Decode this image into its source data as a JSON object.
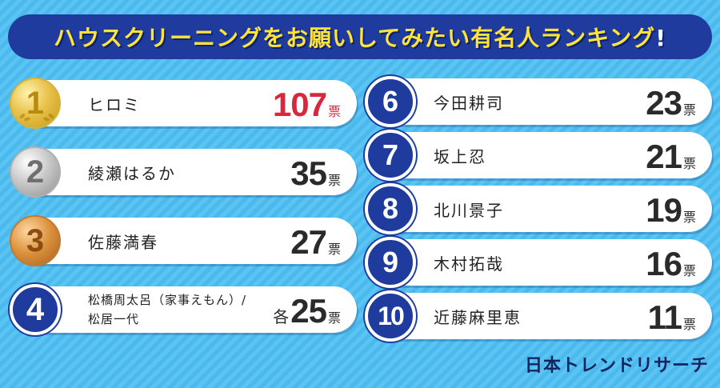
{
  "title": {
    "main": "ハウスクリーニングをお願いしてみたい有名人ランキング",
    "mark": "!"
  },
  "unit": "票",
  "left": [
    {
      "rank": "1",
      "name": "ヒロミ",
      "votes": "107",
      "style": "gold"
    },
    {
      "rank": "2",
      "name": "綾瀬はるか",
      "votes": "35",
      "style": "silver"
    },
    {
      "rank": "3",
      "name": "佐藤満春",
      "votes": "27",
      "style": "bronze"
    },
    {
      "rank": "4",
      "name_line1": "松橋周太呂（家事えもん）/",
      "name_line2": "松居一代",
      "prefix": "各",
      "votes": "25",
      "style": "blue"
    }
  ],
  "right": [
    {
      "rank": "6",
      "name": "今田耕司",
      "votes": "23"
    },
    {
      "rank": "7",
      "name": "坂上忍",
      "votes": "21"
    },
    {
      "rank": "8",
      "name": "北川景子",
      "votes": "19"
    },
    {
      "rank": "9",
      "name": "木村拓哉",
      "votes": "16"
    },
    {
      "rank": "10",
      "name": "近藤麻里恵",
      "votes": "11"
    }
  ],
  "footer": {
    "logo_text": "日本トレンドリサーチ"
  },
  "colors": {
    "background": "#49b9ee",
    "title_bar": "#1f3b9e",
    "title_text": "#ffe33a",
    "first_place_votes": "#d8283d"
  }
}
